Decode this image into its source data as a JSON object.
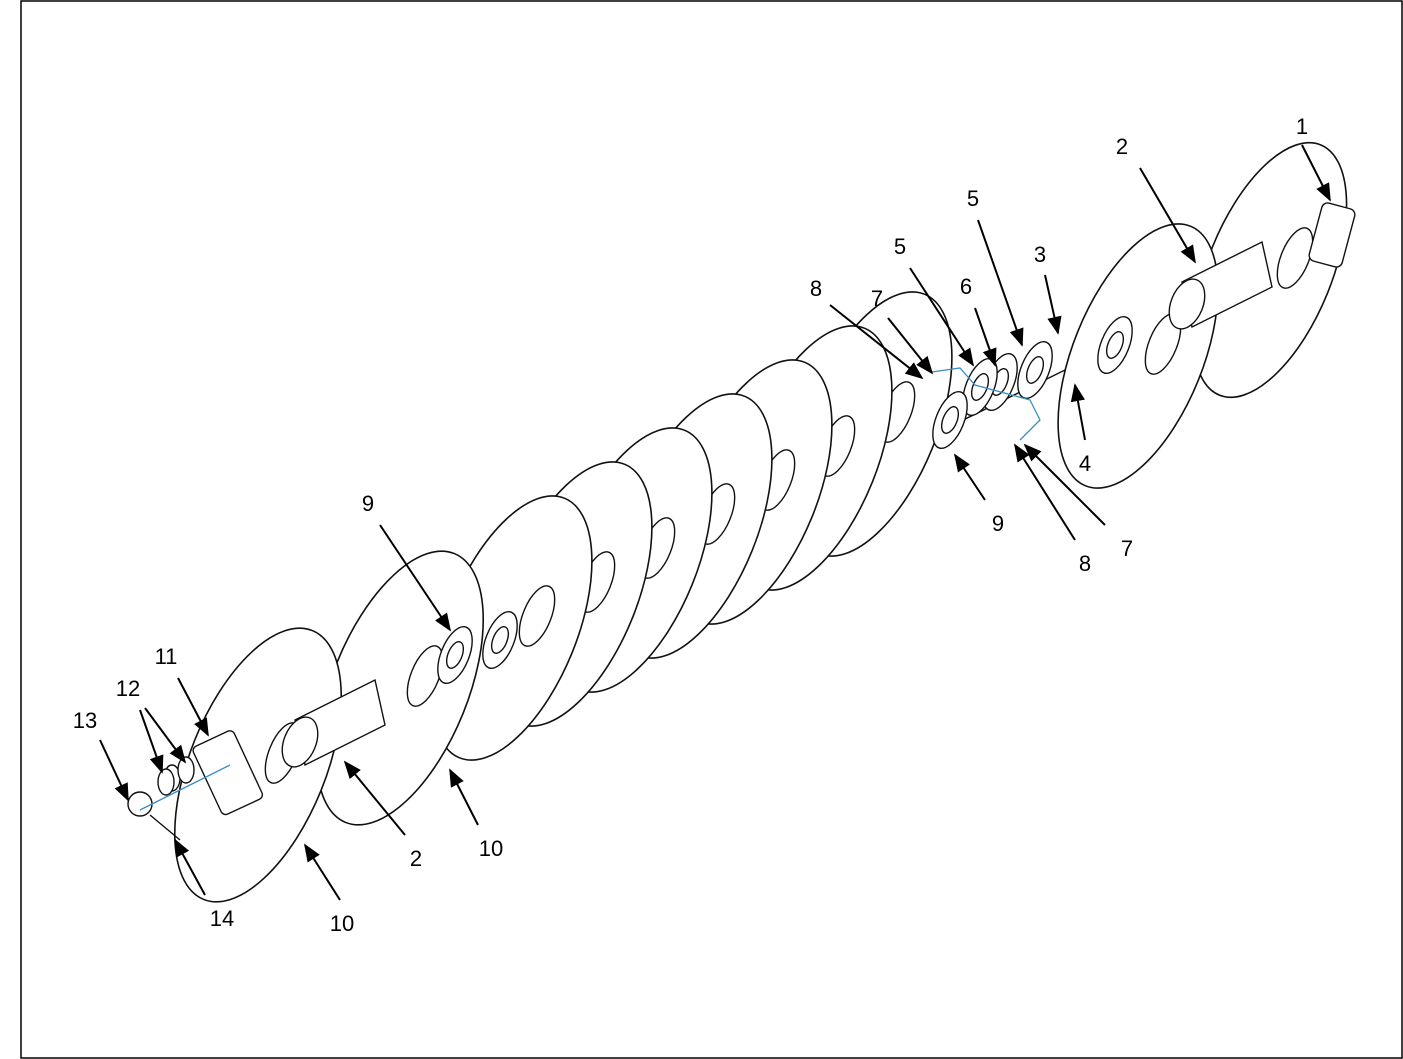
{
  "callouts": [
    {
      "label": "1"
    },
    {
      "label": "2"
    },
    {
      "label": "5"
    },
    {
      "label": "3"
    },
    {
      "label": "6"
    },
    {
      "label": "5"
    },
    {
      "label": "8"
    },
    {
      "label": "7"
    },
    {
      "label": "4"
    },
    {
      "label": "9"
    },
    {
      "label": "7"
    },
    {
      "label": "8"
    },
    {
      "label": "9"
    },
    {
      "label": "11"
    },
    {
      "label": "12"
    },
    {
      "label": "13"
    },
    {
      "label": "14"
    },
    {
      "label": "10"
    },
    {
      "label": "2"
    },
    {
      "label": "10"
    }
  ]
}
